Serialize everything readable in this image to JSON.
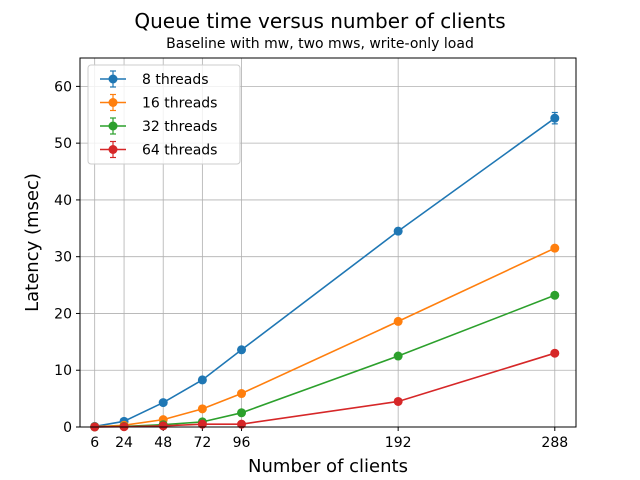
{
  "chart_data": {
    "type": "line",
    "title": "Queue time versus number of clients",
    "subtitle": "Baseline with mw, two mws, write-only load",
    "xlabel": "Number of clients",
    "ylabel": "Latency (msec)",
    "x": [
      6,
      24,
      48,
      72,
      96,
      192,
      288
    ],
    "xlim": [
      -3,
      301
    ],
    "ylim": [
      0,
      65
    ],
    "yticks": [
      0,
      10,
      20,
      30,
      40,
      50,
      60
    ],
    "grid": true,
    "legend_position": "top-left",
    "series": [
      {
        "name": "8 threads",
        "color": "#1f77b4",
        "values": [
          0.1,
          1.0,
          4.3,
          8.3,
          13.6,
          34.5,
          54.4
        ],
        "errors": [
          0.1,
          0.2,
          0.3,
          0.3,
          0.4,
          0.5,
          1.0
        ]
      },
      {
        "name": "16 threads",
        "color": "#ff7f0e",
        "values": [
          0.05,
          0.3,
          1.3,
          3.2,
          5.9,
          18.6,
          31.5
        ],
        "errors": [
          0.05,
          0.1,
          0.2,
          0.2,
          0.3,
          0.4,
          0.5
        ]
      },
      {
        "name": "32 threads",
        "color": "#2ca02c",
        "values": [
          0.02,
          0.1,
          0.4,
          0.9,
          2.5,
          12.5,
          23.2
        ],
        "errors": [
          0.02,
          0.05,
          0.1,
          0.1,
          0.2,
          0.3,
          0.4
        ]
      },
      {
        "name": "64 threads",
        "color": "#d62728",
        "values": [
          0.01,
          0.05,
          0.2,
          0.5,
          0.5,
          4.5,
          13.0
        ],
        "errors": [
          0.01,
          0.03,
          0.05,
          0.1,
          0.1,
          0.2,
          0.3
        ]
      }
    ]
  }
}
